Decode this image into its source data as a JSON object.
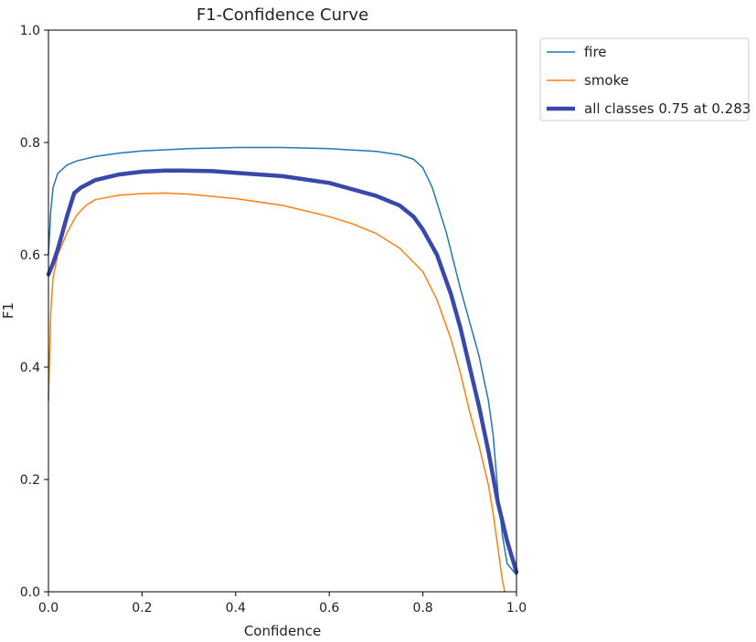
{
  "chart_data": {
    "type": "line",
    "title": "F1-Confidence Curve",
    "xlabel": "Confidence",
    "ylabel": "F1",
    "xlim": [
      0.0,
      1.0
    ],
    "ylim": [
      0.0,
      1.0
    ],
    "xticks": [
      "0.0",
      "0.2",
      "0.4",
      "0.6",
      "0.8",
      "1.0"
    ],
    "yticks": [
      "0.0",
      "0.2",
      "0.4",
      "0.6",
      "0.8",
      "1.0"
    ],
    "grid": false,
    "legend_position": "outside-top-right",
    "series": [
      {
        "name": "fire",
        "color": "#1f77b4",
        "points": [
          [
            0.0,
            0.6
          ],
          [
            0.005,
            0.68
          ],
          [
            0.01,
            0.72
          ],
          [
            0.02,
            0.745
          ],
          [
            0.04,
            0.76
          ],
          [
            0.06,
            0.767
          ],
          [
            0.1,
            0.775
          ],
          [
            0.15,
            0.781
          ],
          [
            0.2,
            0.785
          ],
          [
            0.3,
            0.789
          ],
          [
            0.4,
            0.791
          ],
          [
            0.5,
            0.791
          ],
          [
            0.6,
            0.789
          ],
          [
            0.7,
            0.784
          ],
          [
            0.75,
            0.778
          ],
          [
            0.78,
            0.77
          ],
          [
            0.8,
            0.755
          ],
          [
            0.82,
            0.72
          ],
          [
            0.85,
            0.64
          ],
          [
            0.88,
            0.54
          ],
          [
            0.9,
            0.48
          ],
          [
            0.92,
            0.42
          ],
          [
            0.94,
            0.34
          ],
          [
            0.95,
            0.28
          ],
          [
            0.96,
            0.18
          ],
          [
            0.97,
            0.1
          ],
          [
            0.98,
            0.05
          ],
          [
            1.0,
            0.03
          ]
        ]
      },
      {
        "name": "smoke",
        "color": "#ff7f0e",
        "points": [
          [
            0.0,
            0.34
          ],
          [
            0.005,
            0.5
          ],
          [
            0.01,
            0.56
          ],
          [
            0.02,
            0.6
          ],
          [
            0.04,
            0.64
          ],
          [
            0.06,
            0.67
          ],
          [
            0.08,
            0.688
          ],
          [
            0.1,
            0.698
          ],
          [
            0.15,
            0.706
          ],
          [
            0.2,
            0.709
          ],
          [
            0.25,
            0.71
          ],
          [
            0.3,
            0.708
          ],
          [
            0.4,
            0.7
          ],
          [
            0.5,
            0.688
          ],
          [
            0.6,
            0.668
          ],
          [
            0.65,
            0.655
          ],
          [
            0.7,
            0.638
          ],
          [
            0.75,
            0.612
          ],
          [
            0.8,
            0.57
          ],
          [
            0.83,
            0.52
          ],
          [
            0.86,
            0.45
          ],
          [
            0.88,
            0.39
          ],
          [
            0.9,
            0.32
          ],
          [
            0.92,
            0.26
          ],
          [
            0.94,
            0.19
          ],
          [
            0.95,
            0.14
          ],
          [
            0.96,
            0.08
          ],
          [
            0.97,
            0.02
          ],
          [
            0.975,
            0.0
          ]
        ]
      },
      {
        "name": "all classes 0.75 at 0.283",
        "color": "#3949ab",
        "points": [
          [
            0.0,
            0.565
          ],
          [
            0.01,
            0.585
          ],
          [
            0.02,
            0.61
          ],
          [
            0.03,
            0.64
          ],
          [
            0.04,
            0.67
          ],
          [
            0.055,
            0.71
          ],
          [
            0.07,
            0.72
          ],
          [
            0.1,
            0.733
          ],
          [
            0.15,
            0.743
          ],
          [
            0.2,
            0.748
          ],
          [
            0.25,
            0.75
          ],
          [
            0.283,
            0.75
          ],
          [
            0.35,
            0.749
          ],
          [
            0.4,
            0.746
          ],
          [
            0.5,
            0.74
          ],
          [
            0.6,
            0.728
          ],
          [
            0.7,
            0.705
          ],
          [
            0.75,
            0.688
          ],
          [
            0.78,
            0.668
          ],
          [
            0.8,
            0.645
          ],
          [
            0.83,
            0.6
          ],
          [
            0.86,
            0.53
          ],
          [
            0.88,
            0.47
          ],
          [
            0.9,
            0.4
          ],
          [
            0.92,
            0.33
          ],
          [
            0.94,
            0.25
          ],
          [
            0.96,
            0.16
          ],
          [
            0.98,
            0.09
          ],
          [
            1.0,
            0.035
          ]
        ]
      }
    ]
  }
}
